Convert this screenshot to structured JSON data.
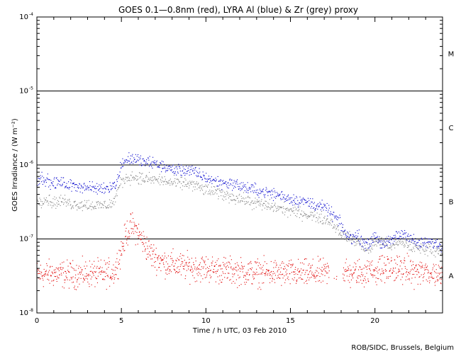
{
  "chart_data": {
    "type": "scatter",
    "title": "GOES 0.1—0.8nm (red), LYRA Al (blue) & Zr (grey) proxy",
    "xlabel": "Time / h UTC, 03 Feb 2010",
    "ylabel": "GOES Irradiance / (W m⁻²)",
    "credit": "ROB/SIDC, Brussels, Belgium",
    "xlim": [
      0,
      24
    ],
    "ylim": [
      1e-08,
      0.0001
    ],
    "yscale": "log",
    "x_ticks": [
      0,
      5,
      10,
      15,
      20
    ],
    "x_tick_labels": [
      "0",
      "5",
      "10",
      "15",
      "20"
    ],
    "y_ticks": [
      {
        "value": 0.0001,
        "base": "10",
        "exp": "-4"
      },
      {
        "value": 1e-05,
        "base": "10",
        "exp": "-5"
      },
      {
        "value": 1e-06,
        "base": "10",
        "exp": "-6"
      },
      {
        "value": 1e-07,
        "base": "10",
        "exp": "-7"
      },
      {
        "value": 1e-08,
        "base": "10",
        "exp": "-8"
      }
    ],
    "flux_class_lines": [
      1e-07,
      1e-06,
      1e-05
    ],
    "flux_classes": [
      {
        "label": "M",
        "value": 3.2e-05
      },
      {
        "label": "C",
        "value": 3.2e-06
      },
      {
        "label": "B",
        "value": 3.2e-07
      },
      {
        "label": "A",
        "value": 3.2e-08
      }
    ],
    "colors": {
      "goes": "#e00000",
      "al": "#0000cc",
      "zr": "#808080"
    },
    "series": [
      {
        "key": "goes",
        "points": [
          [
            0,
            3.3e-08
          ],
          [
            1,
            3.4e-08
          ],
          [
            2,
            3.3e-08
          ],
          [
            3,
            3.4e-08
          ],
          [
            4,
            3.4e-08
          ],
          [
            4.6,
            3.6e-08
          ],
          [
            5.0,
            7e-08
          ],
          [
            5.3,
            1.2e-07
          ],
          [
            5.6,
            1.5e-07
          ],
          [
            5.9,
            1.3e-07
          ],
          [
            6.3,
            9e-08
          ],
          [
            6.8,
            6e-08
          ],
          [
            7.5,
            4.8e-08
          ],
          [
            8.5,
            4.3e-08
          ],
          [
            10,
            4e-08
          ],
          [
            11,
            3.8e-08
          ],
          [
            12,
            3.6e-08
          ],
          [
            13,
            3.5e-08
          ],
          [
            14,
            3.5e-08
          ],
          [
            15,
            3.4e-08
          ],
          [
            16,
            3.4e-08
          ],
          [
            17,
            3.5e-08
          ],
          [
            18,
            3.5e-08
          ],
          [
            19,
            3.4e-08
          ],
          [
            20,
            3.8e-08
          ],
          [
            21,
            4e-08
          ],
          [
            22,
            3.7e-08
          ],
          [
            23,
            3.5e-08
          ],
          [
            24,
            3.3e-08
          ]
        ]
      },
      {
        "key": "al",
        "points": [
          [
            0,
            6.2e-07
          ],
          [
            0.4,
            6.8e-07
          ],
          [
            0.8,
            5.6e-07
          ],
          [
            1.4,
            5.8e-07
          ],
          [
            2.0,
            5.2e-07
          ],
          [
            2.4,
            5.3e-07
          ],
          [
            3.0,
            4.9e-07
          ],
          [
            3.8,
            4.8e-07
          ],
          [
            4.4,
            5.2e-07
          ],
          [
            4.7,
            5.4e-07
          ],
          [
            5.0,
            1.05e-06
          ],
          [
            5.4,
            1.2e-06
          ],
          [
            5.8,
            1.22e-06
          ],
          [
            6.2,
            1.1e-06
          ],
          [
            7.0,
            1.05e-06
          ],
          [
            7.5,
            9.5e-07
          ],
          [
            8.0,
            8.6e-07
          ],
          [
            9.0,
            8.5e-07
          ],
          [
            10.0,
            6.7e-07
          ],
          [
            10.8,
            5.8e-07
          ],
          [
            11.6,
            5.6e-07
          ],
          [
            12.5,
            4.8e-07
          ],
          [
            13.5,
            4.3e-07
          ],
          [
            14.5,
            3.8e-07
          ],
          [
            15.0,
            3.5e-07
          ],
          [
            15.8,
            3.2e-07
          ],
          [
            16.5,
            2.9e-07
          ],
          [
            17.2,
            2.5e-07
          ],
          [
            17.8,
            1.8e-07
          ],
          [
            18.4,
            1.05e-07
          ],
          [
            19.0,
            1.1e-07
          ],
          [
            19.6,
            8e-08
          ],
          [
            20.0,
            1.15e-07
          ],
          [
            20.5,
            8e-08
          ],
          [
            21.3,
            1.1e-07
          ],
          [
            21.8,
            1.2e-07
          ],
          [
            22.5,
            8.5e-08
          ],
          [
            23.3,
            9e-08
          ],
          [
            24,
            8e-08
          ]
        ]
      },
      {
        "key": "zr",
        "points": [
          [
            0,
            3.2e-07
          ],
          [
            0.5,
            3.5e-07
          ],
          [
            1.0,
            3.1e-07
          ],
          [
            1.5,
            3.3e-07
          ],
          [
            2.0,
            3e-07
          ],
          [
            3.0,
            2.9e-07
          ],
          [
            3.8,
            2.8e-07
          ],
          [
            4.5,
            3e-07
          ],
          [
            5.0,
            6e-07
          ],
          [
            5.4,
            6.8e-07
          ],
          [
            5.8,
            6.9e-07
          ],
          [
            6.4,
            6.4e-07
          ],
          [
            7.2,
            6.3e-07
          ],
          [
            8.0,
            5.7e-07
          ],
          [
            9.0,
            5.6e-07
          ],
          [
            10.0,
            4.6e-07
          ],
          [
            11.0,
            4e-07
          ],
          [
            12.0,
            3.5e-07
          ],
          [
            13.0,
            3e-07
          ],
          [
            14.0,
            2.7e-07
          ],
          [
            15.0,
            2.4e-07
          ],
          [
            15.8,
            2.2e-07
          ],
          [
            16.6,
            2e-07
          ],
          [
            17.4,
            1.7e-07
          ],
          [
            18.0,
            1.2e-07
          ],
          [
            19.0,
            9e-08
          ],
          [
            19.6,
            7e-08
          ],
          [
            20.2,
            9.5e-08
          ],
          [
            21.0,
            8e-08
          ],
          [
            21.6,
            9e-08
          ],
          [
            22.4,
            7.5e-08
          ],
          [
            23.2,
            7.5e-08
          ],
          [
            24,
            7e-08
          ]
        ]
      }
    ]
  }
}
